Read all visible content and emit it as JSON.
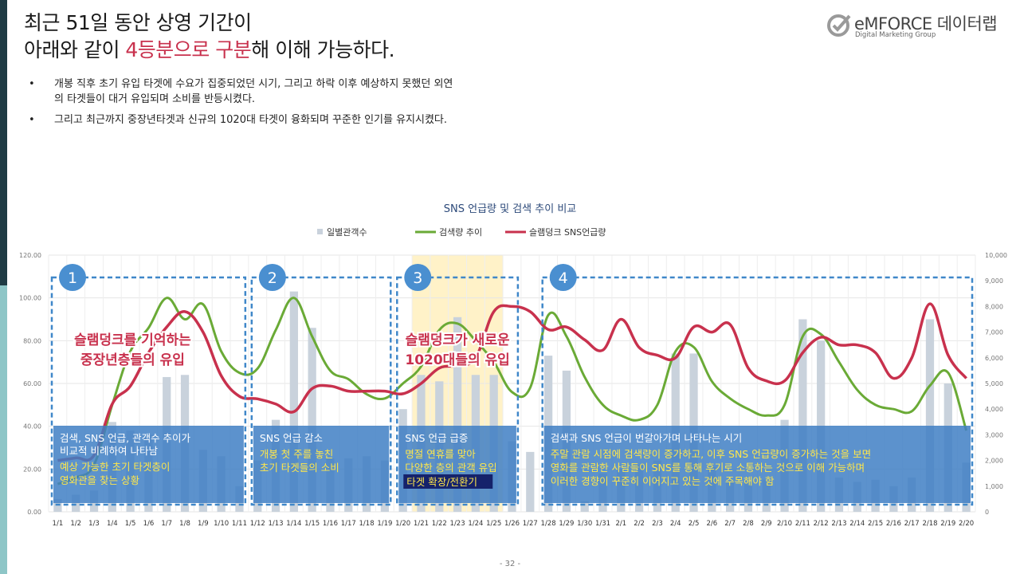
{
  "header": {
    "title_line1": "최근 51일 동안 상영 기간이",
    "title_line2_pre": "아래와 같이 ",
    "title_line2_hl1": "4등분으로",
    "title_line2_mid": " ",
    "title_line2_hl2": "구분",
    "title_line2_post": "해 이해 가능하다."
  },
  "logo": {
    "brand": "eMFORCE 데이터랩",
    "sub": "Digital Marketing Group"
  },
  "bullets": [
    "개봉 직후 초기 유입 타겟에 수요가 집중되었던 시기, 그리고 하락 이후 예상하지 못했던 외연의 타겟들이 대거 유입되며 소비를 반등시켰다.",
    "그리고 최근까지 중장년타겟과 신규의 1020대 타겟이 융화되며 꾸준한 인기를 유지시켰다."
  ],
  "page_number": "- 32 -",
  "colors": {
    "bars": "#c9d2dc",
    "search": "#6aaa36",
    "sns": "#c8314d",
    "box_border": "#3f87c9",
    "panel": "#3f7fc4",
    "highlight": "#fff2c8",
    "circle": "#4a8fd0"
  },
  "chart_data": {
    "type": "bar+line",
    "title": "SNS 언급량 및 검색 추이 비교",
    "legend": [
      "일별관객수",
      "검색량 추이",
      "슬램덩크 SNS언급량"
    ],
    "legend_position": "top-center",
    "categories": [
      "1/1",
      "1/2",
      "1/3",
      "1/4",
      "1/5",
      "1/6",
      "1/7",
      "1/8",
      "1/9",
      "1/10",
      "1/11",
      "1/12",
      "1/13",
      "1/14",
      "1/15",
      "1/16",
      "1/17",
      "1/18",
      "1/19",
      "1/20",
      "1/21",
      "1/22",
      "1/23",
      "1/24",
      "1/25",
      "1/26",
      "1/27",
      "1/28",
      "1/29",
      "1/30",
      "1/31",
      "2/1",
      "2/2",
      "2/3",
      "2/4",
      "2/5",
      "2/6",
      "2/7",
      "2/8",
      "2/9",
      "2/10",
      "2/11",
      "2/12",
      "2/13",
      "2/14",
      "2/15",
      "2/16",
      "2/17",
      "2/18",
      "2/19",
      "2/20"
    ],
    "left_axis": {
      "ticks": [
        "0.00",
        "20.00",
        "40.00",
        "60.00",
        "80.00",
        "100.00",
        "120.00"
      ],
      "range": [
        0,
        120
      ]
    },
    "right_axis": {
      "ticks": [
        "0",
        "1,000",
        "2,000",
        "3,000",
        "4,000",
        "5,000",
        "6,000",
        "7,000",
        "8,000",
        "9,000",
        "10,000"
      ],
      "range": [
        0,
        10000
      ]
    },
    "series": [
      {
        "name": "일별관객수",
        "axis": "left",
        "kind": "bar",
        "values": [
          6,
          8,
          10,
          42,
          38,
          36,
          63,
          64,
          29,
          26,
          12,
          24,
          43,
          103,
          86,
          25,
          25,
          26,
          24,
          48,
          64,
          61,
          91,
          64,
          64,
          33,
          28,
          73,
          66,
          5,
          18,
          20,
          22,
          24,
          74,
          74,
          21,
          14,
          14,
          15,
          43,
          90,
          80,
          16,
          14,
          15,
          12,
          16,
          90,
          60,
          23
        ]
      },
      {
        "name": "검색량 추이",
        "axis": "left",
        "kind": "line",
        "values": [
          13,
          16,
          22,
          50,
          75,
          86,
          100,
          90,
          97,
          75,
          65,
          67,
          85,
          100,
          82,
          66,
          62,
          55,
          53,
          60,
          68,
          85,
          88,
          80,
          70,
          56,
          58,
          92,
          82,
          63,
          50,
          45,
          43,
          50,
          75,
          77,
          61,
          53,
          48,
          45,
          50,
          82,
          83,
          70,
          57,
          50,
          48,
          47,
          59,
          65,
          38
        ]
      },
      {
        "name": "슬램덩크 SNS언급량",
        "axis": "right",
        "kind": "line",
        "values": [
          2000,
          2100,
          2200,
          4200,
          4900,
          6200,
          7200,
          7800,
          7000,
          5300,
          4500,
          4400,
          4200,
          3900,
          4800,
          4900,
          4700,
          4700,
          4700,
          4600,
          5000,
          5600,
          5700,
          6000,
          7800,
          8000,
          7800,
          7100,
          7200,
          6700,
          6300,
          7500,
          6400,
          6100,
          6000,
          7200,
          7000,
          7300,
          5600,
          5100,
          5100,
          6200,
          6800,
          6500,
          6500,
          6200,
          5200,
          6000,
          8100,
          6100,
          5200
        ]
      }
    ],
    "highlight_range": [
      "1/21",
      "1/25"
    ],
    "sections": [
      {
        "number": "1",
        "start": "1/1",
        "end": "1/11",
        "overlay": "슬램덩크를 기억하는\n중장년층들의 유입",
        "panel_white": "검색, SNS 언급, 관객수 추이가\n비교적 비례하여 나타남",
        "panel_yellow": "예상 가능한 초기 타겟층이\n영화관을 찾는 상황"
      },
      {
        "number": "2",
        "start": "1/12",
        "end": "1/19",
        "overlay": "",
        "panel_white": "SNS 언급 감소",
        "panel_yellow": "개봉 첫 주를 놓친\n초기 타겟들의 소비"
      },
      {
        "number": "3",
        "start": "1/20",
        "end": "1/26",
        "overlay": "슬램덩크가 새로운\n1020대들의 유입",
        "panel_white": "SNS 언급 급증",
        "panel_yellow": "명절 연휴를 맞아\n다양한 층의 관객 유입",
        "tag": "타겟 확장/전환기"
      },
      {
        "number": "4",
        "start": "1/28",
        "end": "2/20",
        "overlay": "",
        "panel_white": "검색과 SNS 언급이 번갈아가며 나타나는 시기",
        "panel_yellow": "주말 관람 시점에 검색량이 증가하고, 이후 SNS 언급량이 증가하는 것을 보면\n영화를 관람한 사람들이 SNS를 통해 후기로 소통하는 것으로 이해 가능하며\n이러한 경향이 꾸준히 이어지고 있는 것에 주목해야 함"
      }
    ]
  }
}
